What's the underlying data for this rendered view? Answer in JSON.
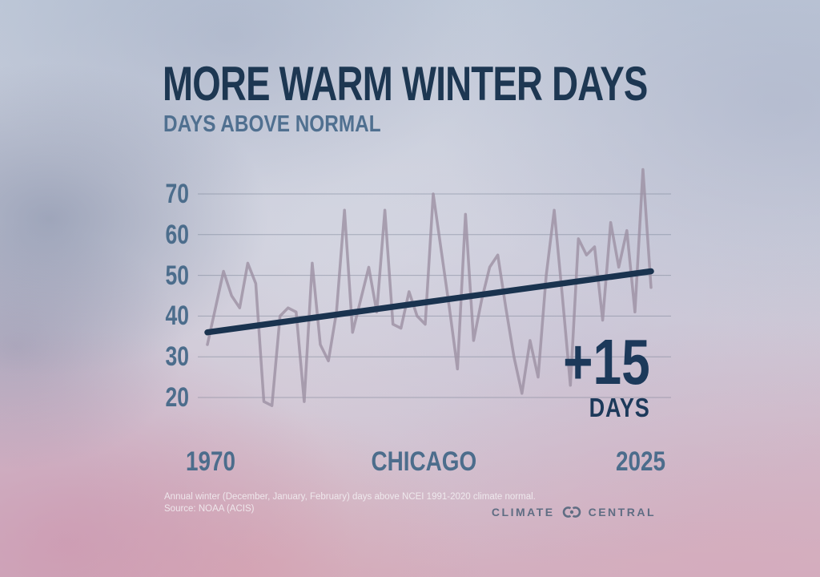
{
  "header": {
    "title": "MORE WARM WINTER DAYS",
    "subtitle": "DAYS ABOVE NORMAL"
  },
  "annotation": {
    "value": "+15",
    "unit": "DAYS"
  },
  "x_axis": {
    "start_year": "1970",
    "location": "CHICAGO",
    "end_year": "2025"
  },
  "footer": {
    "line1": "Annual winter (December, January, February) days above NCEI 1991-2020 climate normal.",
    "line2": "Source: NOAA (ACIS)"
  },
  "logo": {
    "word1": "CLIMATE",
    "word2": "CENTRAL",
    "icon": "climate-central-rings-icon"
  },
  "colors": {
    "title_navy": "#1d3752",
    "subtitle_blue": "#507090",
    "axis_blue": "#4c6d8c",
    "annotation_navy": "#1c395a",
    "series_mauve": "#9c90a2",
    "trend_navy": "#1a334f",
    "grid_gray": "#6b7689",
    "logo_slate": "#5f6d83"
  },
  "chart_data": {
    "type": "line",
    "title": "MORE WARM WINTER DAYS",
    "subtitle": "DAYS ABOVE NORMAL",
    "xlabel": "Winter year (1970-2025), Chicago",
    "ylabel": "Days above normal",
    "ylim": [
      14,
      78
    ],
    "y_ticks": [
      70,
      60,
      50,
      40,
      30,
      20
    ],
    "grid": true,
    "legend": false,
    "x_start": 1970,
    "x_end": 2025,
    "x": [
      1970,
      1971,
      1972,
      1973,
      1974,
      1975,
      1976,
      1977,
      1978,
      1979,
      1980,
      1981,
      1982,
      1983,
      1984,
      1985,
      1986,
      1987,
      1988,
      1989,
      1990,
      1991,
      1992,
      1993,
      1994,
      1995,
      1996,
      1997,
      1998,
      1999,
      2000,
      2001,
      2002,
      2003,
      2004,
      2005,
      2006,
      2007,
      2008,
      2009,
      2010,
      2011,
      2012,
      2013,
      2014,
      2015,
      2016,
      2017,
      2018,
      2019,
      2020,
      2021,
      2022,
      2023,
      2024,
      2025
    ],
    "values": [
      33,
      42,
      51,
      45,
      42,
      53,
      48,
      19,
      18,
      40,
      42,
      41,
      19,
      53,
      33,
      29,
      41,
      66,
      36,
      44,
      52,
      41,
      66,
      38,
      37,
      46,
      40,
      38,
      70,
      56,
      42,
      27,
      65,
      34,
      44,
      52,
      55,
      42,
      30,
      21,
      34,
      25,
      50,
      66,
      45,
      23,
      59,
      55,
      57,
      39,
      63,
      52,
      61,
      41,
      76,
      47
    ],
    "trend": {
      "start_value": 36,
      "end_value": 51,
      "change_days": 15
    }
  }
}
